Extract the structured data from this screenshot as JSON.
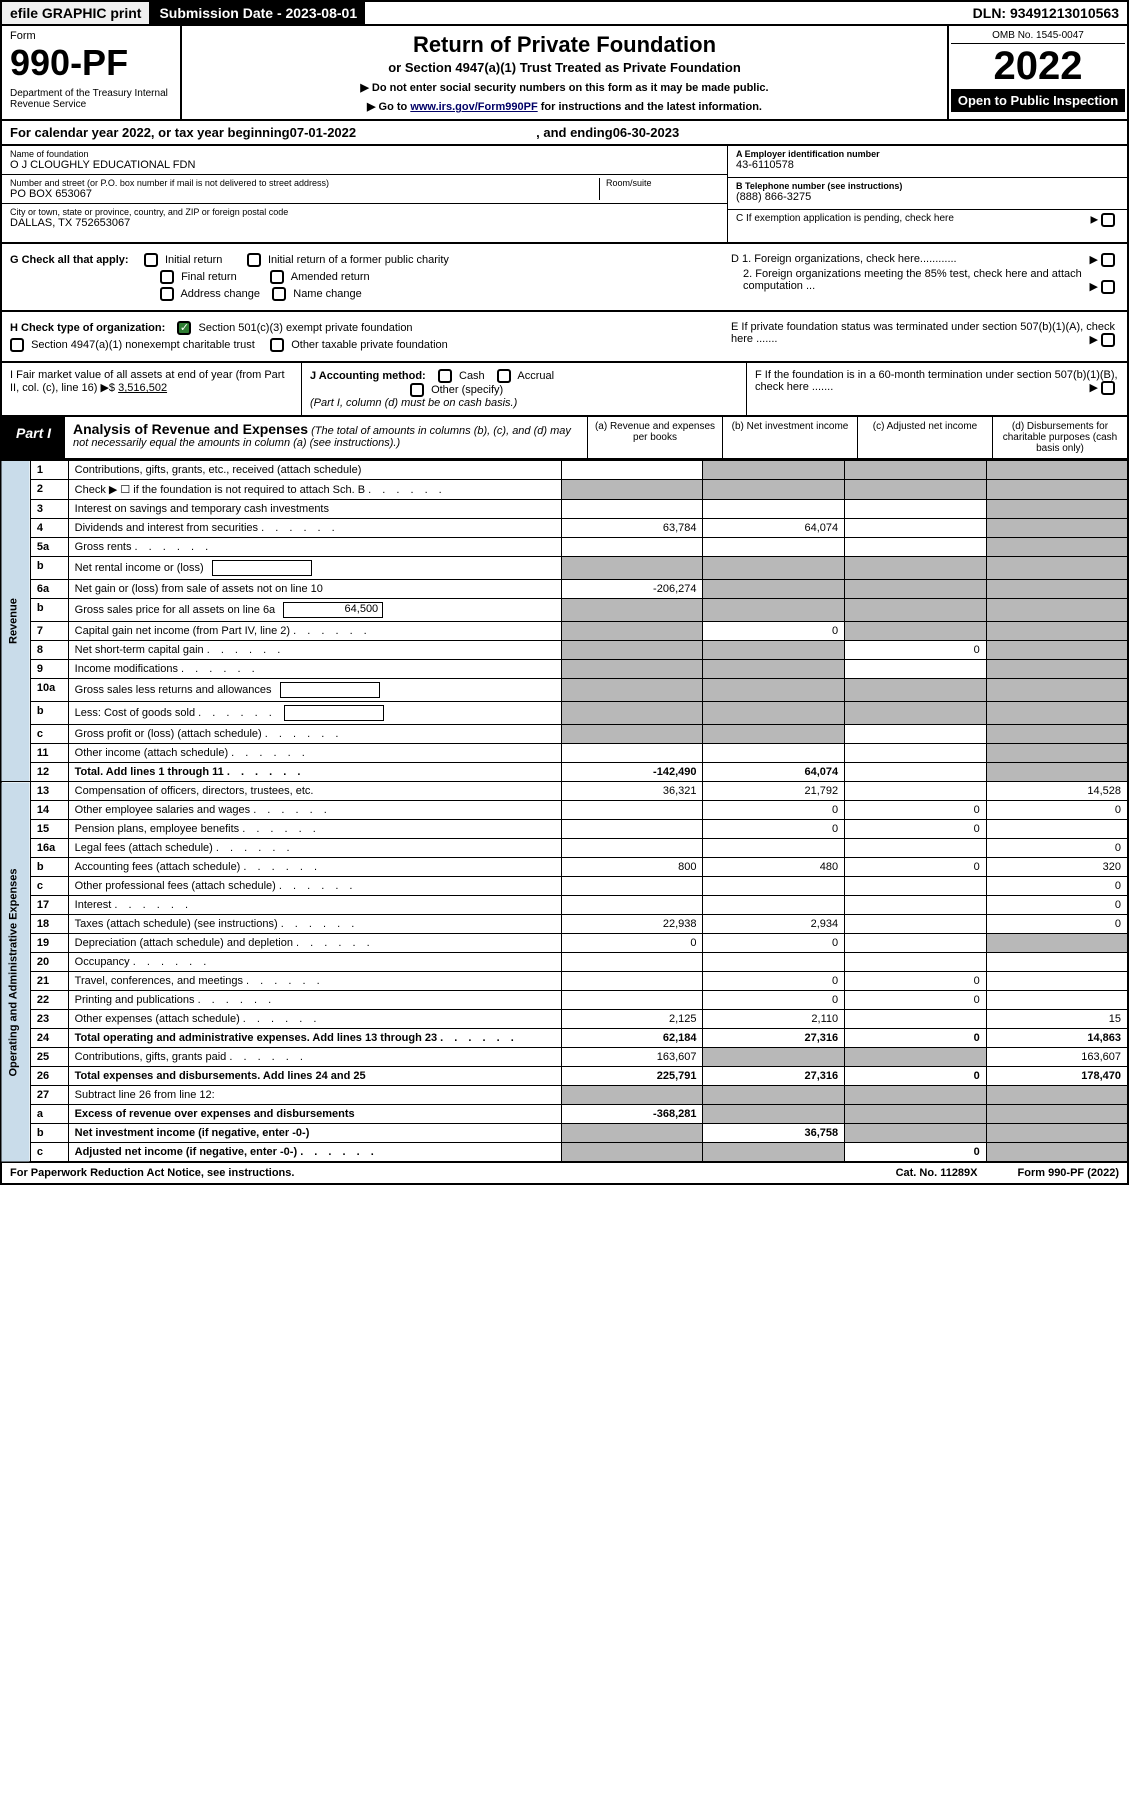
{
  "top_bar": {
    "efile": "efile GRAPHIC print",
    "submission": "Submission Date - 2023-08-01",
    "dln": "DLN: 93491213010563"
  },
  "header": {
    "form_label": "Form",
    "form_number": "990-PF",
    "dept": "Department of the Treasury\nInternal Revenue Service",
    "title": "Return of Private Foundation",
    "subtitle": "or Section 4947(a)(1) Trust Treated as Private Foundation",
    "instr1": "▶ Do not enter social security numbers on this form as it may be made public.",
    "instr2_pre": "▶ Go to ",
    "instr2_link": "www.irs.gov/Form990PF",
    "instr2_post": " for instructions and the latest information.",
    "omb": "OMB No. 1545-0047",
    "year": "2022",
    "open_public": "Open to Public Inspection"
  },
  "cal_year": {
    "prefix": "For calendar year 2022, or tax year beginning ",
    "begin": "07-01-2022",
    "mid": " , and ending ",
    "end": "06-30-2023"
  },
  "info": {
    "name_label": "Name of foundation",
    "name": "O J CLOUGHLY EDUCATIONAL FDN",
    "addr_label": "Number and street (or P.O. box number if mail is not delivered to street address)",
    "addr": "PO BOX 653067",
    "room_label": "Room/suite",
    "city_label": "City or town, state or province, country, and ZIP or foreign postal code",
    "city": "DALLAS, TX  752653067",
    "ein_label": "A Employer identification number",
    "ein": "43-6110578",
    "phone_label": "B Telephone number (see instructions)",
    "phone": "(888) 866-3275",
    "c_label": "C If exemption application is pending, check here",
    "d1": "D 1. Foreign organizations, check here............",
    "d2": "2. Foreign organizations meeting the 85% test, check here and attach computation ...",
    "e_label": "E  If private foundation status was terminated under section 507(b)(1)(A), check here .......",
    "f_label": "F  If the foundation is in a 60-month termination under section 507(b)(1)(B), check here .......",
    "g_label": "G Check all that apply:",
    "g_opts": [
      "Initial return",
      "Final return",
      "Address change",
      "Initial return of a former public charity",
      "Amended return",
      "Name change"
    ],
    "h_label": "H Check type of organization:",
    "h_opt1": "Section 501(c)(3) exempt private foundation",
    "h_opt2": "Section 4947(a)(1) nonexempt charitable trust",
    "h_opt3": "Other taxable private foundation",
    "i_label": "I Fair market value of all assets at end of year (from Part II, col. (c), line 16) ▶$",
    "i_value": "3,516,502",
    "j_label": "J Accounting method:",
    "j_opts": [
      "Cash",
      "Accrual"
    ],
    "j_other": "Other (specify)",
    "j_note": "(Part I, column (d) must be on cash basis.)"
  },
  "part1": {
    "label": "Part I",
    "title": "Analysis of Revenue and Expenses",
    "title_note": "(The total of amounts in columns (b), (c), and (d) may not necessarily equal the amounts in column (a) (see instructions).)",
    "col_a": "(a) Revenue and expenses per books",
    "col_b": "(b) Net investment income",
    "col_c": "(c) Adjusted net income",
    "col_d": "(d) Disbursements for charitable purposes (cash basis only)",
    "side_revenue": "Revenue",
    "side_expenses": "Operating and Administrative Expenses"
  },
  "rows": [
    {
      "n": "1",
      "desc": "Contributions, gifts, grants, etc., received (attach schedule)",
      "a": "",
      "b": "shaded",
      "c": "shaded",
      "d": "shaded"
    },
    {
      "n": "2",
      "desc": "Check ▶ ☐ if the foundation is not required to attach Sch. B",
      "a": "shaded",
      "b": "shaded",
      "c": "shaded",
      "d": "shaded",
      "dots": true
    },
    {
      "n": "3",
      "desc": "Interest on savings and temporary cash investments",
      "a": "",
      "b": "",
      "c": "",
      "d": "shaded"
    },
    {
      "n": "4",
      "desc": "Dividends and interest from securities",
      "a": "63,784",
      "b": "64,074",
      "c": "",
      "d": "shaded",
      "dots": true
    },
    {
      "n": "5a",
      "desc": "Gross rents",
      "a": "",
      "b": "",
      "c": "",
      "d": "shaded",
      "dots": true
    },
    {
      "n": "b",
      "desc": "Net rental income or (loss)",
      "a": "shaded",
      "b": "shaded",
      "c": "shaded",
      "d": "shaded",
      "inline": ""
    },
    {
      "n": "6a",
      "desc": "Net gain or (loss) from sale of assets not on line 10",
      "a": "-206,274",
      "b": "shaded",
      "c": "shaded",
      "d": "shaded"
    },
    {
      "n": "b",
      "desc": "Gross sales price for all assets on line 6a",
      "a": "shaded",
      "b": "shaded",
      "c": "shaded",
      "d": "shaded",
      "inline": "64,500"
    },
    {
      "n": "7",
      "desc": "Capital gain net income (from Part IV, line 2)",
      "a": "shaded",
      "b": "0",
      "c": "shaded",
      "d": "shaded",
      "dots": true
    },
    {
      "n": "8",
      "desc": "Net short-term capital gain",
      "a": "shaded",
      "b": "shaded",
      "c": "0",
      "d": "shaded",
      "dots": true
    },
    {
      "n": "9",
      "desc": "Income modifications",
      "a": "shaded",
      "b": "shaded",
      "c": "",
      "d": "shaded",
      "dots": true
    },
    {
      "n": "10a",
      "desc": "Gross sales less returns and allowances",
      "a": "shaded",
      "b": "shaded",
      "c": "shaded",
      "d": "shaded",
      "inline": ""
    },
    {
      "n": "b",
      "desc": "Less: Cost of goods sold",
      "a": "shaded",
      "b": "shaded",
      "c": "shaded",
      "d": "shaded",
      "inline": "",
      "dots": true
    },
    {
      "n": "c",
      "desc": "Gross profit or (loss) (attach schedule)",
      "a": "shaded",
      "b": "shaded",
      "c": "",
      "d": "shaded",
      "dots": true
    },
    {
      "n": "11",
      "desc": "Other income (attach schedule)",
      "a": "",
      "b": "",
      "c": "",
      "d": "shaded",
      "dots": true
    },
    {
      "n": "12",
      "desc": "Total. Add lines 1 through 11",
      "a": "-142,490",
      "b": "64,074",
      "c": "",
      "d": "shaded",
      "bold": true,
      "dots": true
    },
    {
      "n": "13",
      "desc": "Compensation of officers, directors, trustees, etc.",
      "a": "36,321",
      "b": "21,792",
      "c": "",
      "d": "14,528",
      "section": "exp"
    },
    {
      "n": "14",
      "desc": "Other employee salaries and wages",
      "a": "",
      "b": "0",
      "c": "0",
      "d": "0",
      "dots": true
    },
    {
      "n": "15",
      "desc": "Pension plans, employee benefits",
      "a": "",
      "b": "0",
      "c": "0",
      "d": "",
      "dots": true
    },
    {
      "n": "16a",
      "desc": "Legal fees (attach schedule)",
      "a": "",
      "b": "",
      "c": "",
      "d": "0",
      "dots": true
    },
    {
      "n": "b",
      "desc": "Accounting fees (attach schedule)",
      "a": "800",
      "b": "480",
      "c": "0",
      "d": "320",
      "dots": true
    },
    {
      "n": "c",
      "desc": "Other professional fees (attach schedule)",
      "a": "",
      "b": "",
      "c": "",
      "d": "0",
      "dots": true
    },
    {
      "n": "17",
      "desc": "Interest",
      "a": "",
      "b": "",
      "c": "",
      "d": "0",
      "dots": true
    },
    {
      "n": "18",
      "desc": "Taxes (attach schedule) (see instructions)",
      "a": "22,938",
      "b": "2,934",
      "c": "",
      "d": "0",
      "dots": true
    },
    {
      "n": "19",
      "desc": "Depreciation (attach schedule) and depletion",
      "a": "0",
      "b": "0",
      "c": "",
      "d": "shaded",
      "dots": true
    },
    {
      "n": "20",
      "desc": "Occupancy",
      "a": "",
      "b": "",
      "c": "",
      "d": "",
      "dots": true
    },
    {
      "n": "21",
      "desc": "Travel, conferences, and meetings",
      "a": "",
      "b": "0",
      "c": "0",
      "d": "",
      "dots": true
    },
    {
      "n": "22",
      "desc": "Printing and publications",
      "a": "",
      "b": "0",
      "c": "0",
      "d": "",
      "dots": true
    },
    {
      "n": "23",
      "desc": "Other expenses (attach schedule)",
      "a": "2,125",
      "b": "2,110",
      "c": "",
      "d": "15",
      "dots": true
    },
    {
      "n": "24",
      "desc": "Total operating and administrative expenses. Add lines 13 through 23",
      "a": "62,184",
      "b": "27,316",
      "c": "0",
      "d": "14,863",
      "bold": true,
      "dots": true
    },
    {
      "n": "25",
      "desc": "Contributions, gifts, grants paid",
      "a": "163,607",
      "b": "shaded",
      "c": "shaded",
      "d": "163,607",
      "dots": true
    },
    {
      "n": "26",
      "desc": "Total expenses and disbursements. Add lines 24 and 25",
      "a": "225,791",
      "b": "27,316",
      "c": "0",
      "d": "178,470",
      "bold": true
    },
    {
      "n": "27",
      "desc": "Subtract line 26 from line 12:",
      "a": "shaded",
      "b": "shaded",
      "c": "shaded",
      "d": "shaded",
      "section": "end"
    },
    {
      "n": "a",
      "desc": "Excess of revenue over expenses and disbursements",
      "a": "-368,281",
      "b": "shaded",
      "c": "shaded",
      "d": "shaded",
      "bold": true
    },
    {
      "n": "b",
      "desc": "Net investment income (if negative, enter -0-)",
      "a": "shaded",
      "b": "36,758",
      "c": "shaded",
      "d": "shaded",
      "bold": true
    },
    {
      "n": "c",
      "desc": "Adjusted net income (if negative, enter -0-)",
      "a": "shaded",
      "b": "shaded",
      "c": "0",
      "d": "shaded",
      "bold": true,
      "dots": true
    }
  ],
  "footer": {
    "left": "For Paperwork Reduction Act Notice, see instructions.",
    "mid": "Cat. No. 11289X",
    "right": "Form 990-PF (2022)"
  },
  "colors": {
    "side_bg": "#c9dcea",
    "shaded": "#b8b8b8",
    "check_green": "#2e7d32",
    "link": "#000066"
  }
}
